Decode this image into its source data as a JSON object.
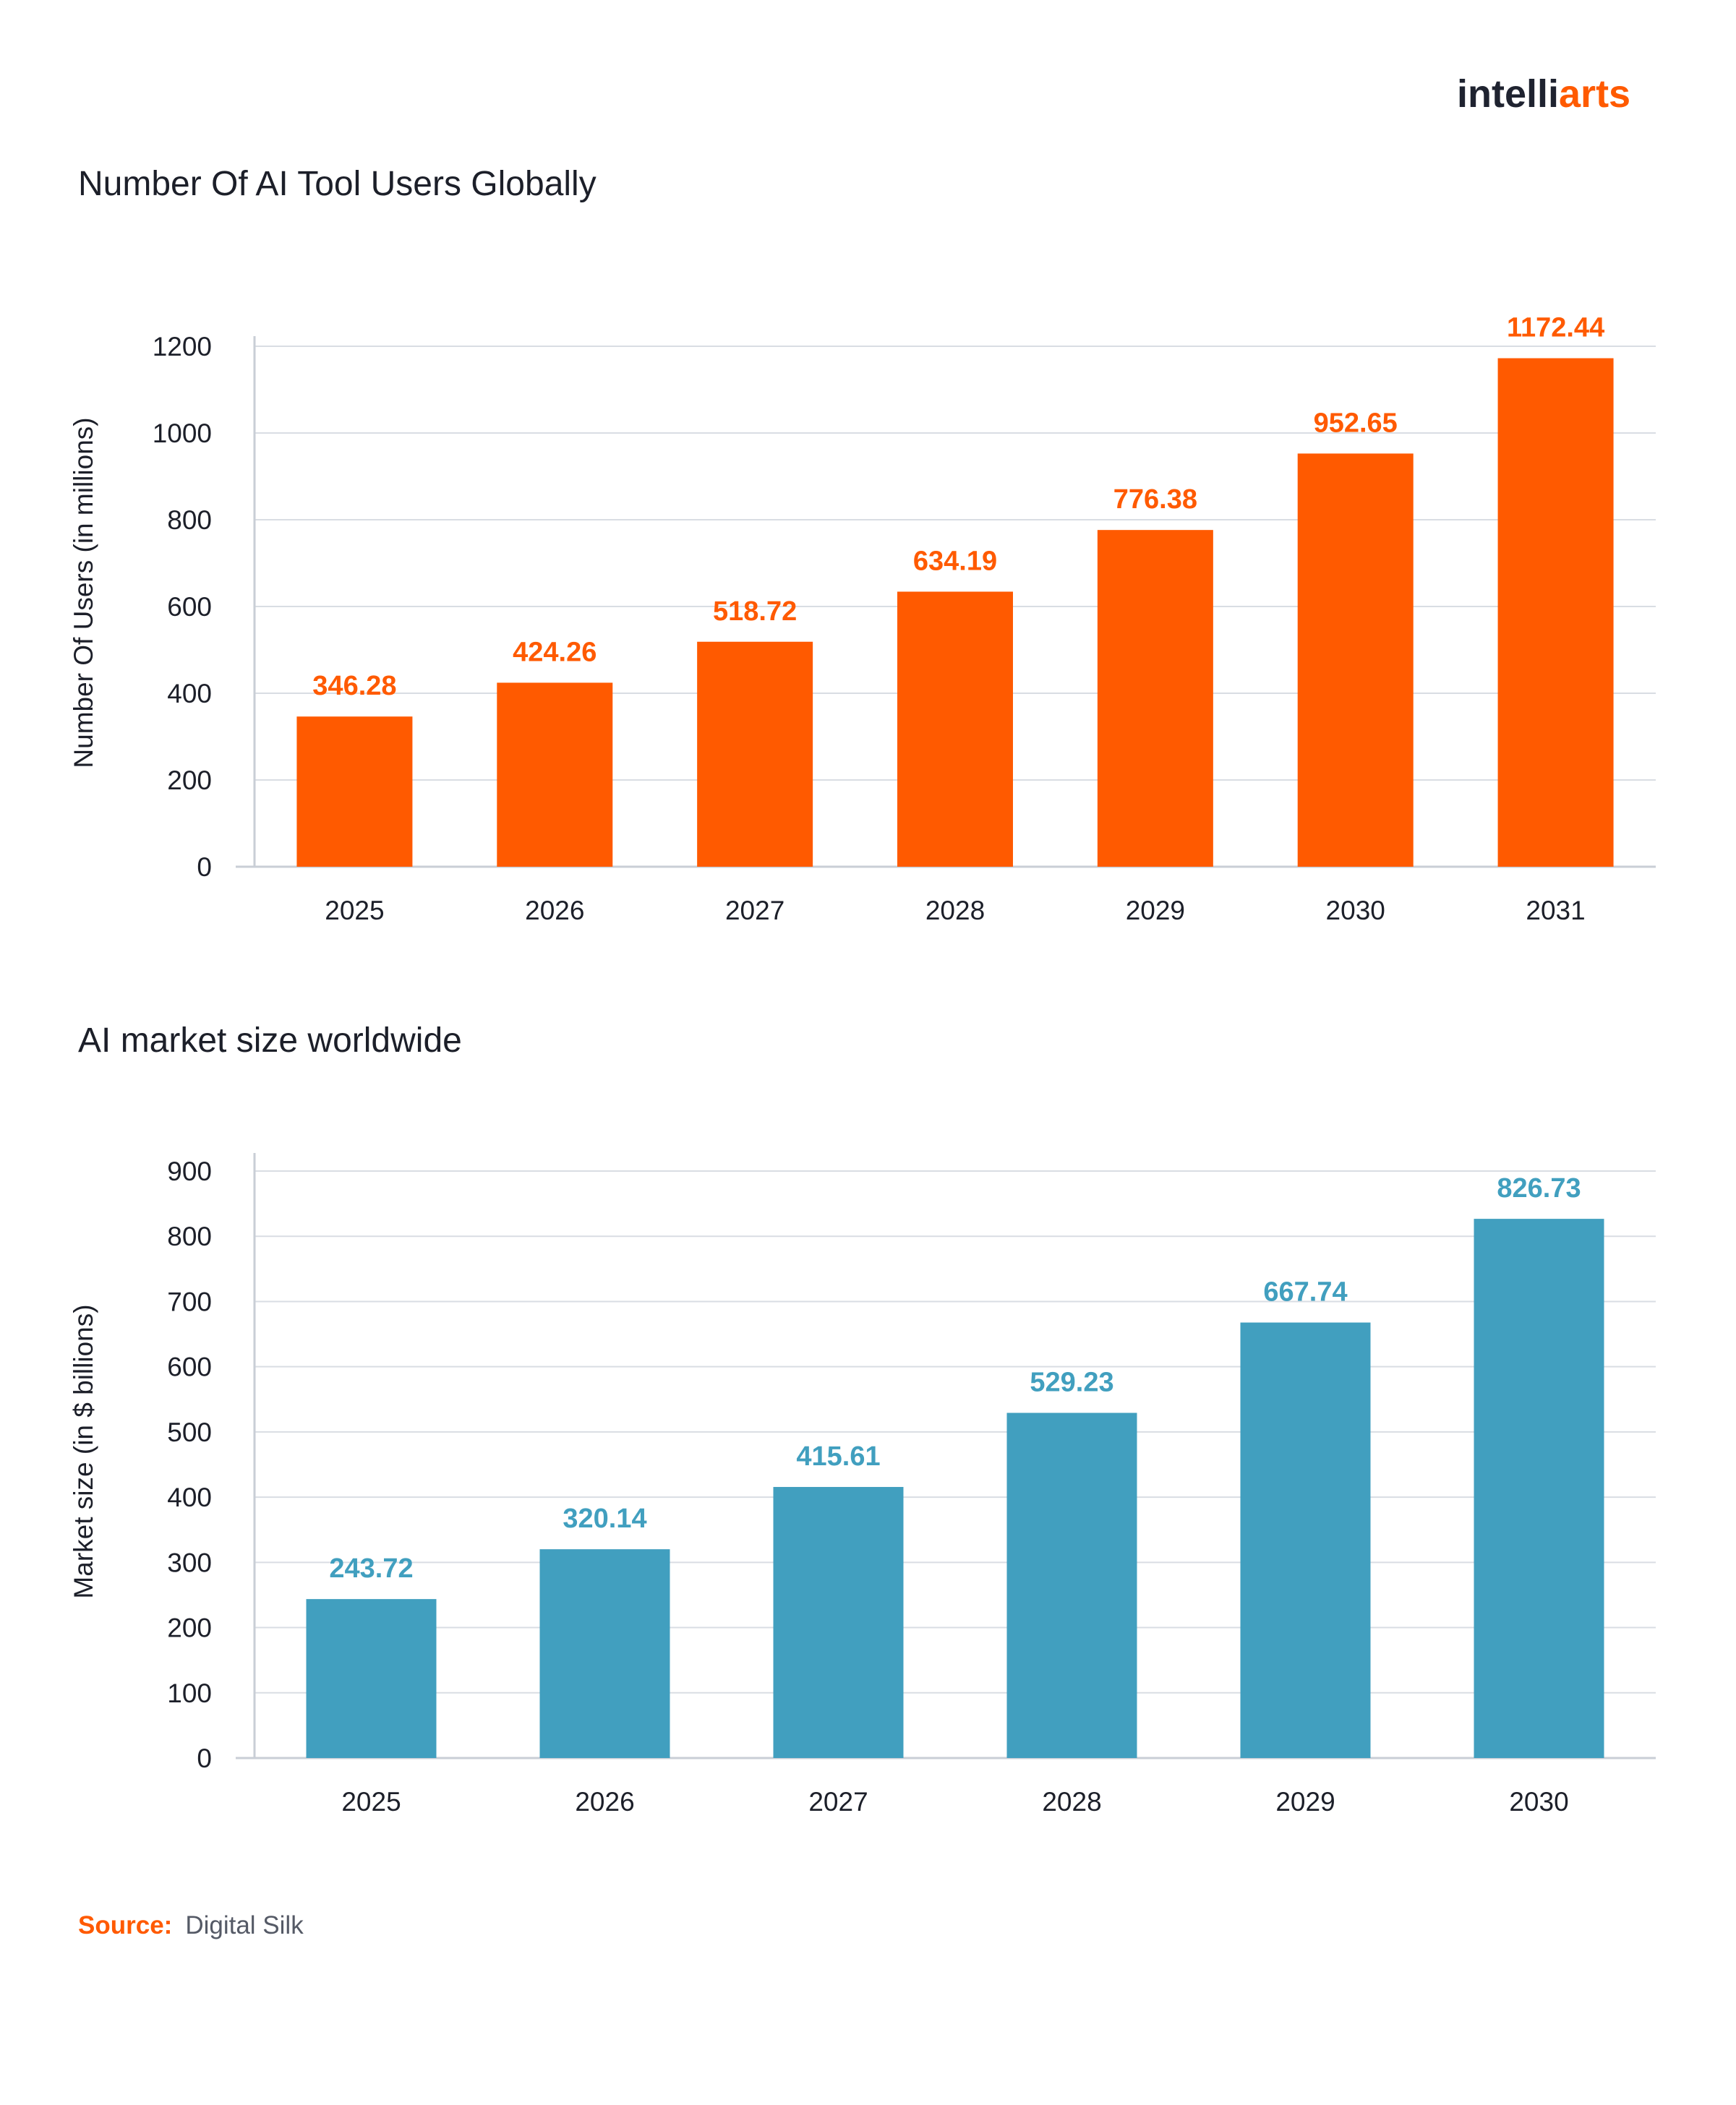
{
  "brand": {
    "part1": "intelli",
    "part2": "arts"
  },
  "source": {
    "label": "Source:",
    "value": "Digital Silk"
  },
  "chart_data": [
    {
      "type": "bar",
      "title": "Number Of AI Tool Users Globally",
      "xlabel": "",
      "ylabel": "Number Of Users (in millions)",
      "categories": [
        "2025",
        "2026",
        "2027",
        "2028",
        "2029",
        "2030",
        "2031"
      ],
      "values": [
        346.28,
        424.26,
        518.72,
        634.19,
        776.38,
        952.65,
        1172.44
      ],
      "value_labels": [
        "346.28",
        "424.26",
        "518.72",
        "634.19",
        "776.38",
        "952.65",
        "1172.44"
      ],
      "yticks": [
        0,
        200,
        400,
        600,
        800,
        1000,
        1200
      ],
      "ylim": [
        0,
        1200
      ],
      "color": "#ff5a00",
      "grid": true
    },
    {
      "type": "bar",
      "title": "AI market size worldwide",
      "xlabel": "",
      "ylabel": "Market size (in $ billions)",
      "categories": [
        "2025",
        "2026",
        "2027",
        "2028",
        "2029",
        "2030"
      ],
      "values": [
        243.72,
        320.14,
        415.61,
        529.23,
        667.74,
        826.73
      ],
      "value_labels": [
        "243.72",
        "320.14",
        "415.61",
        "529.23",
        "667.74",
        "826.73"
      ],
      "yticks": [
        0,
        100,
        200,
        300,
        400,
        500,
        600,
        700,
        800,
        900
      ],
      "ylim": [
        0,
        900
      ],
      "color": "#419fbf",
      "grid": true
    }
  ]
}
